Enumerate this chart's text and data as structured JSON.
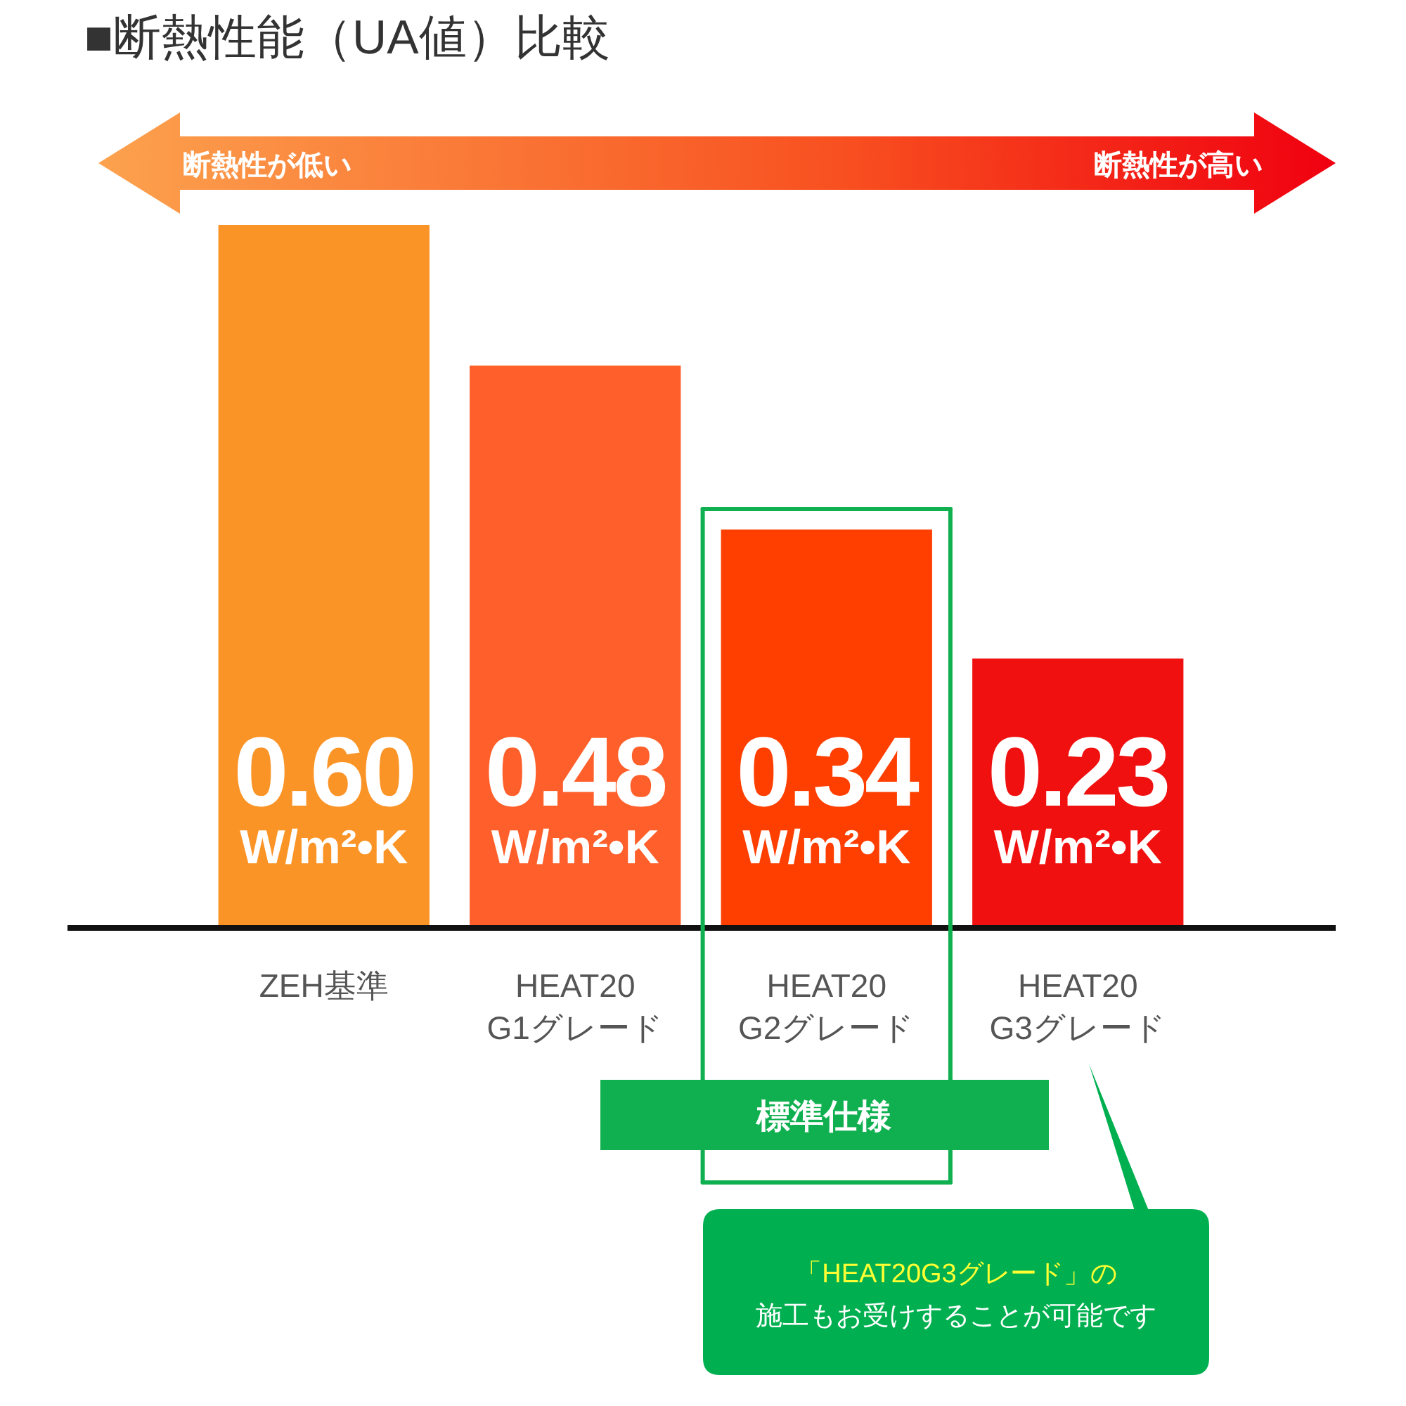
{
  "chart_data": {
    "type": "bar",
    "title": "■断熱性能（UA値）比較",
    "categories": [
      "ZEH基準",
      "HEAT20\nG1グレード",
      "HEAT20\nG2グレード",
      "HEAT20\nG3グレード"
    ],
    "values": [
      0.6,
      0.48,
      0.34,
      0.23
    ],
    "colors": [
      "#fb9426",
      "#ff5f2a",
      "#ff3f00",
      "#f01010"
    ],
    "value_labels": [
      "0.60\nW/m²•K",
      "0.48\nW/m²•K",
      "0.34\nW/m²•K",
      "0.23\nW/m²•K"
    ],
    "ylim": [
      0,
      0.6
    ],
    "annotations": [
      "断熱性が低い",
      "断熱性が高い",
      "標準仕様",
      "「HEAT20G3グレード」の",
      "施工もお受けすることが可能です"
    ]
  }
}
